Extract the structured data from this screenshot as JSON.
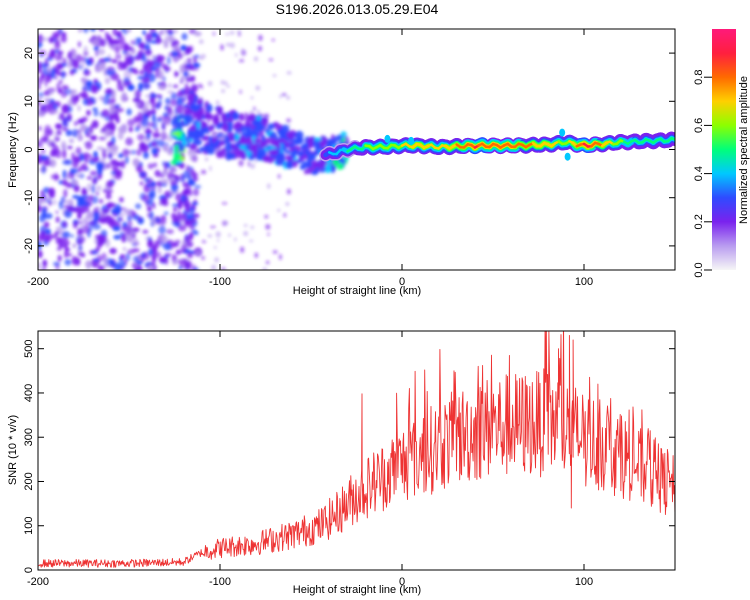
{
  "chart_data": [
    {
      "type": "heatmap",
      "title": "S196.2026.013.05.29.E04",
      "xlabel": "Height of straight line (km)",
      "ylabel": "Frequency (Hz)",
      "xlim": [
        -200,
        150
      ],
      "ylim": [
        -25,
        25
      ],
      "xticks": [
        -200,
        -100,
        0,
        100
      ],
      "xtick_labels": [
        "-200",
        "-100",
        "0",
        "100"
      ],
      "yticks": [
        20,
        10,
        0,
        -10,
        -20
      ],
      "ytick_labels": [
        "20",
        "10",
        "0",
        "-10",
        "-20"
      ],
      "colorbar": {
        "label": "Normalized spectral amplitude",
        "range": [
          0,
          1
        ],
        "ticks": [
          0.0,
          0.2,
          0.4,
          0.6,
          0.8
        ],
        "tick_labels": [
          "0.0",
          "0.2",
          "0.4",
          "0.6",
          "0.8"
        ],
        "colors": [
          "#f6f6f6",
          "#b99cf0",
          "#7a22ee",
          "#2f4bff",
          "#00c8ff",
          "#00ff7a",
          "#8cff00",
          "#ffd000",
          "#ff6a00",
          "#ff1f3f",
          "#ff1a7a"
        ]
      },
      "ridge": [
        {
          "x": -120,
          "y": 6,
          "amp": 0.3
        },
        {
          "x": -110,
          "y": 5,
          "amp": 0.3
        },
        {
          "x": -100,
          "y": 3.5,
          "amp": 0.28
        },
        {
          "x": -90,
          "y": 3,
          "amp": 0.3
        },
        {
          "x": -80,
          "y": 2.5,
          "amp": 0.32
        },
        {
          "x": -70,
          "y": 1.5,
          "amp": 0.32
        },
        {
          "x": -60,
          "y": 0,
          "amp": 0.3
        },
        {
          "x": -50,
          "y": -1.5,
          "amp": 0.3
        },
        {
          "x": -40,
          "y": -1,
          "amp": 0.35
        },
        {
          "x": -30,
          "y": 0,
          "amp": 0.45
        },
        {
          "x": -20,
          "y": 0.5,
          "amp": 0.55
        },
        {
          "x": -10,
          "y": 0.5,
          "amp": 0.6
        },
        {
          "x": 0,
          "y": 0.8,
          "amp": 0.65
        },
        {
          "x": 10,
          "y": 0.8,
          "amp": 0.7
        },
        {
          "x": 20,
          "y": 0.5,
          "amp": 0.65
        },
        {
          "x": 40,
          "y": 0.8,
          "amp": 0.85
        },
        {
          "x": 60,
          "y": 0.8,
          "amp": 0.8
        },
        {
          "x": 80,
          "y": 1,
          "amp": 0.7
        },
        {
          "x": 90,
          "y": 1.5,
          "amp": 0.6
        },
        {
          "x": 100,
          "y": 0.8,
          "amp": 0.9
        },
        {
          "x": 120,
          "y": 1.5,
          "amp": 0.55
        },
        {
          "x": 150,
          "y": 2,
          "amp": 0.5
        }
      ]
    },
    {
      "type": "line",
      "xlabel": "Height of straight line (km)",
      "ylabel": "SNR (10 * v/v)",
      "xlim": [
        -200,
        150
      ],
      "ylim": [
        0,
        540
      ],
      "xticks": [
        -200,
        -100,
        0,
        100
      ],
      "xtick_labels": [
        "-200",
        "-100",
        "0",
        "100"
      ],
      "yticks": [
        0,
        100,
        200,
        300,
        400,
        500
      ],
      "ytick_labels": [
        "0",
        "100",
        "200",
        "300",
        "400",
        "500"
      ],
      "series": [
        {
          "name": "SNR",
          "color": "#ee3333",
          "envelope": {
            "x": [
              -200,
              -150,
              -120,
              -110,
              -100,
              -80,
              -60,
              -45,
              -35,
              -25,
              -15,
              0,
              15,
              30,
              50,
              70,
              85,
              93,
              100,
              110,
              125,
              140,
              150
            ],
            "y": [
              15,
              15,
              18,
              40,
              50,
              60,
              80,
              100,
              130,
              170,
              200,
              240,
              270,
              300,
              325,
              330,
              335,
              310,
              300,
              280,
              250,
              210,
              185
            ]
          },
          "spikes": [
            {
              "x": -22,
              "y": 398
            },
            {
              "x": -3,
              "y": 320
            },
            {
              "x": 86,
              "y": 500
            },
            {
              "x": 92,
              "y": 530
            },
            {
              "x": 94,
              "y": 520
            },
            {
              "x": 93,
              "y": 140
            }
          ]
        }
      ]
    }
  ]
}
